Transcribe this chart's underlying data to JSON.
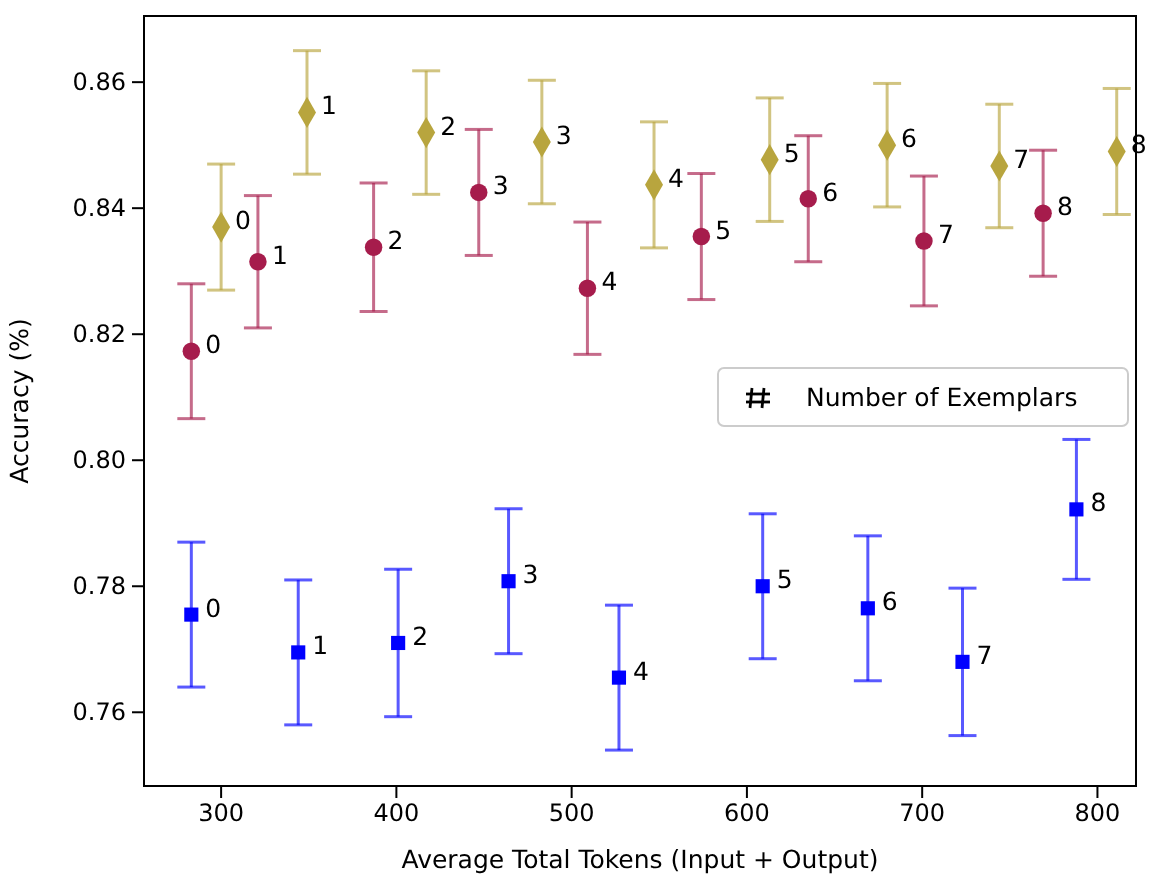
{
  "chart_data": {
    "type": "scatter",
    "xlabel": "Average Total Tokens (Input + Output)",
    "ylabel": "Accuracy (%)",
    "xlim": [
      256,
      822
    ],
    "ylim": [
      0.7483,
      0.8705
    ],
    "xticks": [
      300,
      400,
      500,
      600,
      700,
      800
    ],
    "yticks": [
      {
        "value": 0.76,
        "label": "0.76"
      },
      {
        "value": 0.78,
        "label": "0.78"
      },
      {
        "value": 0.8,
        "label": "0.80"
      },
      {
        "value": 0.82,
        "label": "0.82"
      },
      {
        "value": 0.84,
        "label": "0.84"
      },
      {
        "value": 0.86,
        "label": "0.86"
      }
    ],
    "grid": false,
    "series": [
      {
        "color": "#a61c4c",
        "marker": "circle",
        "x": [
          283,
          321,
          387,
          447,
          509,
          574,
          635,
          701,
          769
        ],
        "values": [
          0.8173,
          0.8315,
          0.8338,
          0.8425,
          0.8273,
          0.8355,
          0.8415,
          0.8348,
          0.8392
        ],
        "errors": [
          0.0107,
          0.0105,
          0.0102,
          0.01,
          0.0105,
          0.01,
          0.01,
          0.0103,
          0.01
        ]
      },
      {
        "color": "#0000ff",
        "marker": "square",
        "x": [
          283,
          344,
          401,
          464,
          527,
          609,
          669,
          723,
          788
        ],
        "values": [
          0.7755,
          0.7695,
          0.771,
          0.7808,
          0.7655,
          0.78,
          0.7765,
          0.768,
          0.7922
        ],
        "errors": [
          0.0115,
          0.0115,
          0.0117,
          0.0115,
          0.0115,
          0.0115,
          0.0115,
          0.0117,
          0.0111
        ]
      },
      {
        "color": "#b8a53e",
        "marker": "diamond",
        "x": [
          300,
          349,
          417,
          483,
          547,
          613,
          680,
          744,
          811
        ],
        "values": [
          0.837,
          0.8552,
          0.852,
          0.8505,
          0.8437,
          0.8477,
          0.85,
          0.8467,
          0.849
        ],
        "errors": [
          0.01,
          0.0098,
          0.0098,
          0.0098,
          0.01,
          0.0098,
          0.0098,
          0.0098,
          0.01
        ]
      }
    ],
    "annotations": [
      {
        "text": "0",
        "x": 283,
        "y": 0.8173
      },
      {
        "text": "1",
        "x": 321,
        "y": 0.8315
      },
      {
        "text": "2",
        "x": 387,
        "y": 0.8338
      },
      {
        "text": "3",
        "x": 447,
        "y": 0.8425
      },
      {
        "text": "4",
        "x": 509,
        "y": 0.8273
      },
      {
        "text": "5",
        "x": 574,
        "y": 0.8355
      },
      {
        "text": "6",
        "x": 635,
        "y": 0.8415
      },
      {
        "text": "7",
        "x": 701,
        "y": 0.8348
      },
      {
        "text": "8",
        "x": 769,
        "y": 0.8392
      },
      {
        "text": "0",
        "x": 283,
        "y": 0.7755
      },
      {
        "text": "1",
        "x": 344,
        "y": 0.7695
      },
      {
        "text": "2",
        "x": 401,
        "y": 0.771
      },
      {
        "text": "3",
        "x": 464,
        "y": 0.7808
      },
      {
        "text": "4",
        "x": 527,
        "y": 0.7655
      },
      {
        "text": "5",
        "x": 609,
        "y": 0.78
      },
      {
        "text": "6",
        "x": 669,
        "y": 0.7765
      },
      {
        "text": "7",
        "x": 723,
        "y": 0.768
      },
      {
        "text": "8",
        "x": 788,
        "y": 0.7922
      },
      {
        "text": "0",
        "x": 300,
        "y": 0.837
      },
      {
        "text": "1",
        "x": 349,
        "y": 0.8552
      },
      {
        "text": "2",
        "x": 417,
        "y": 0.852
      },
      {
        "text": "3",
        "x": 483,
        "y": 0.8505
      },
      {
        "text": "4",
        "x": 547,
        "y": 0.8437
      },
      {
        "text": "5",
        "x": 613,
        "y": 0.8477
      },
      {
        "text": "6",
        "x": 680,
        "y": 0.85
      },
      {
        "text": "7",
        "x": 744,
        "y": 0.8467
      },
      {
        "text": "8",
        "x": 811,
        "y": 0.849
      },
      "Number of Exemplars"
    ]
  }
}
